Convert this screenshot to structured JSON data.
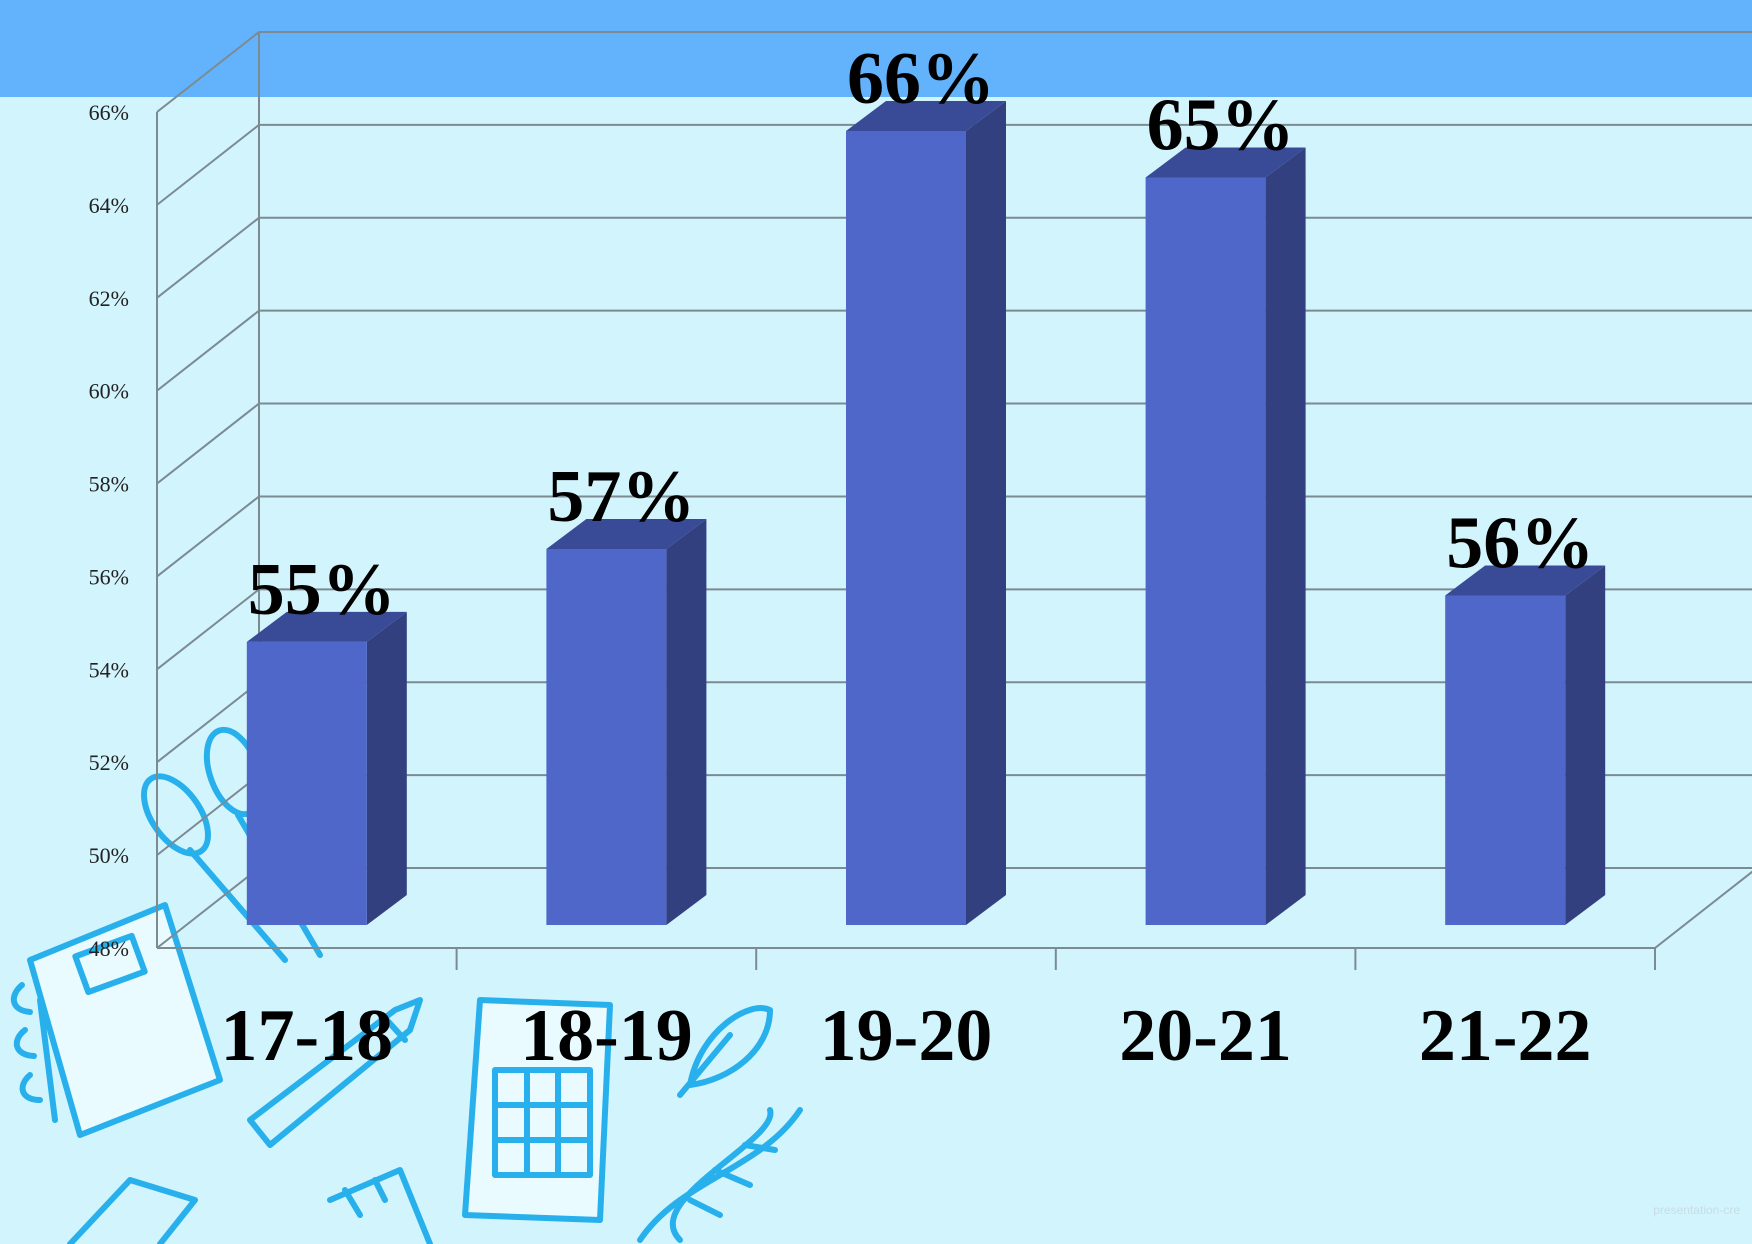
{
  "chart_data": {
    "type": "bar",
    "categories": [
      "17-18",
      "18-19",
      "19-20",
      "20-21",
      "21-22"
    ],
    "values": [
      55,
      57,
      66,
      65,
      56
    ],
    "data_labels": [
      "55%",
      "57%",
      "66%",
      "65%",
      "56%"
    ],
    "y_tick_labels": [
      "48%",
      "50%",
      "52%",
      "54%",
      "56%",
      "58%",
      "60%",
      "62%",
      "64%",
      "66%"
    ],
    "ylim": [
      48,
      66
    ],
    "y_unit": "%",
    "grid": true,
    "three_d": true,
    "bar_color": "#4e67c8",
    "bar_side_color": "#33407f",
    "bar_top_color": "#394a96"
  },
  "colors": {
    "background": "#d2f4fd",
    "top_band": "#63b3fc",
    "doodle": "#28b0ec"
  },
  "decorations": {
    "icons": [
      "scissors-icon",
      "notebook-icon",
      "pencil-icon",
      "calculator-icon",
      "leaf-icon",
      "dna-icon",
      "ruler-icon",
      "eraser-icon"
    ]
  }
}
